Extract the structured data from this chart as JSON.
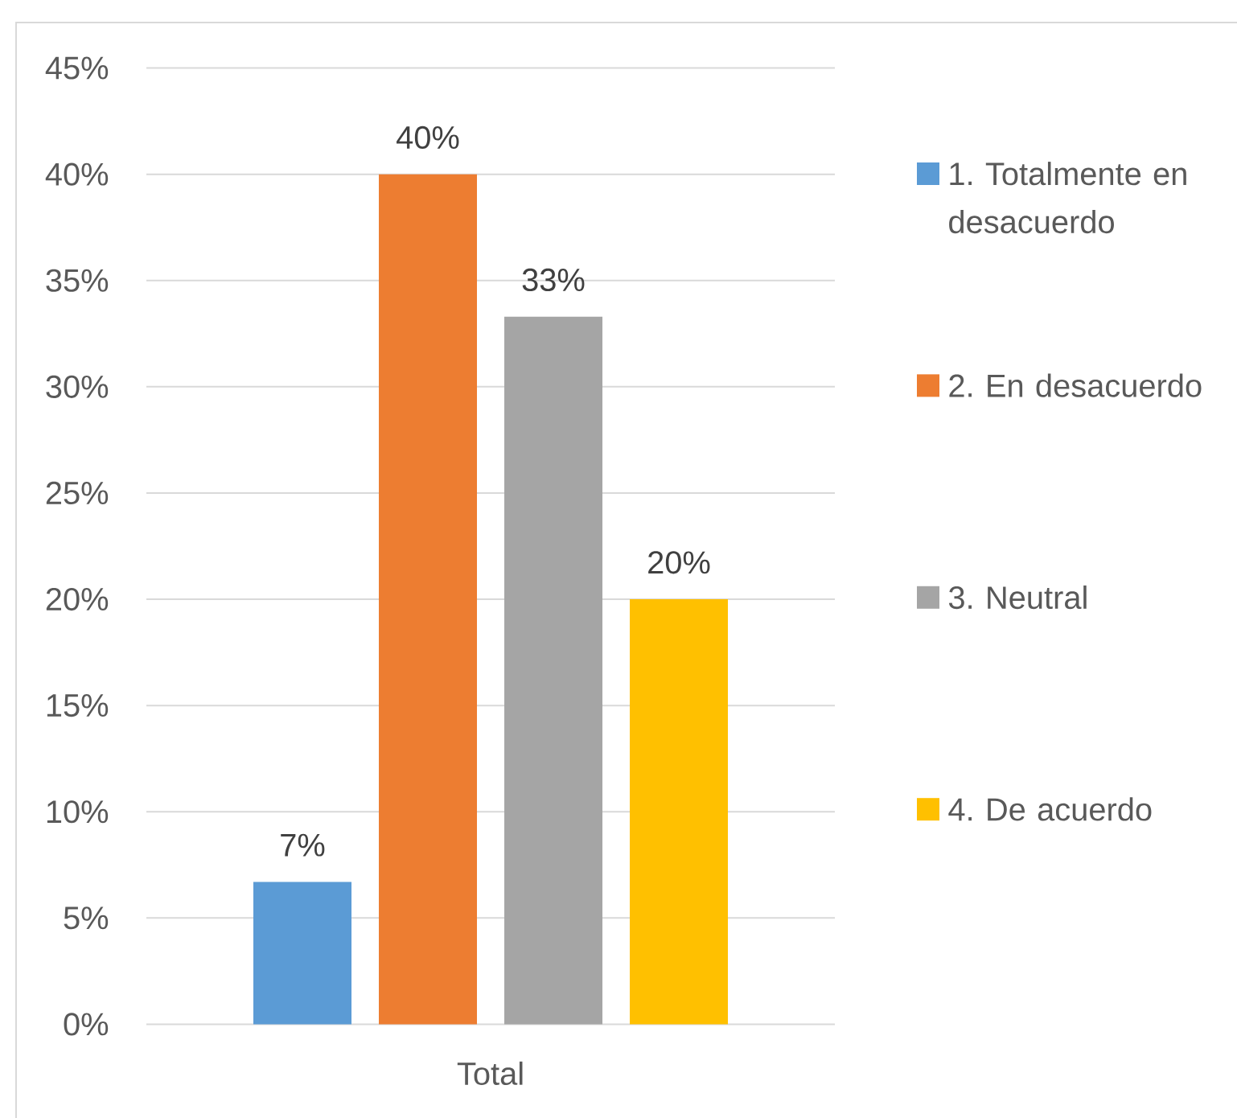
{
  "chart_data": {
    "type": "bar",
    "categories": [
      "Total"
    ],
    "series": [
      {
        "name": "1. Totalmente en desacuerdo",
        "color": "#5b9bd5",
        "values": [
          6.7
        ],
        "value_labels": [
          "7%"
        ]
      },
      {
        "name": "2. En desacuerdo",
        "color": "#ed7d31",
        "values": [
          40
        ],
        "value_labels": [
          "40%"
        ]
      },
      {
        "name": "3. Neutral",
        "color": "#a5a5a5",
        "values": [
          33.3
        ],
        "value_labels": [
          "33%"
        ]
      },
      {
        "name": "4. De acuerdo",
        "color": "#ffc000",
        "values": [
          20
        ],
        "value_labels": [
          "20%"
        ]
      }
    ],
    "ylim": [
      0,
      45
    ],
    "yticks": [
      {
        "value": 0,
        "label": "0%"
      },
      {
        "value": 5,
        "label": "5%"
      },
      {
        "value": 10,
        "label": "10%"
      },
      {
        "value": 15,
        "label": "15%"
      },
      {
        "value": 20,
        "label": "20%"
      },
      {
        "value": 25,
        "label": "25%"
      },
      {
        "value": 30,
        "label": "30%"
      },
      {
        "value": 35,
        "label": "35%"
      },
      {
        "value": 40,
        "label": "40%"
      },
      {
        "value": 45,
        "label": "45%"
      }
    ],
    "grid": "y",
    "legend": "right"
  }
}
